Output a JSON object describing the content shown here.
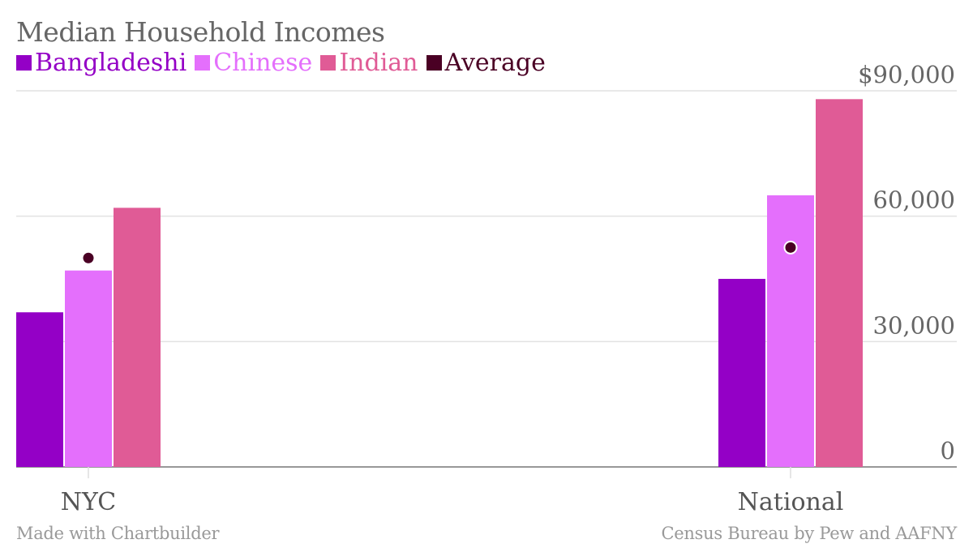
{
  "chart_data": {
    "type": "bar",
    "title": "Median Household Incomes",
    "categories": [
      "NYC",
      "National"
    ],
    "series": [
      {
        "name": "Bangladeshi",
        "color": "#9400c6",
        "values": [
          37000,
          45000
        ]
      },
      {
        "name": "Chinese",
        "color": "#e46ffc",
        "values": [
          47000,
          65000
        ]
      },
      {
        "name": "Indian",
        "color": "#e05b96",
        "values": [
          62000,
          88000
        ]
      }
    ],
    "average": {
      "name": "Average",
      "color": "#4a0024",
      "values": [
        50000,
        52500
      ]
    },
    "y_ticks": [
      {
        "value": 0,
        "label": "0"
      },
      {
        "value": 30000,
        "label": "30,000"
      },
      {
        "value": 60000,
        "label": "60,000"
      },
      {
        "value": 90000,
        "label": "$90,000"
      }
    ],
    "ylim": [
      0,
      90000
    ],
    "grid": true,
    "legend_position": "top-left",
    "axis_side": "right"
  },
  "credits": {
    "left": "Made with Chartbuilder",
    "right": "Census Bureau by Pew and AAFNY"
  }
}
